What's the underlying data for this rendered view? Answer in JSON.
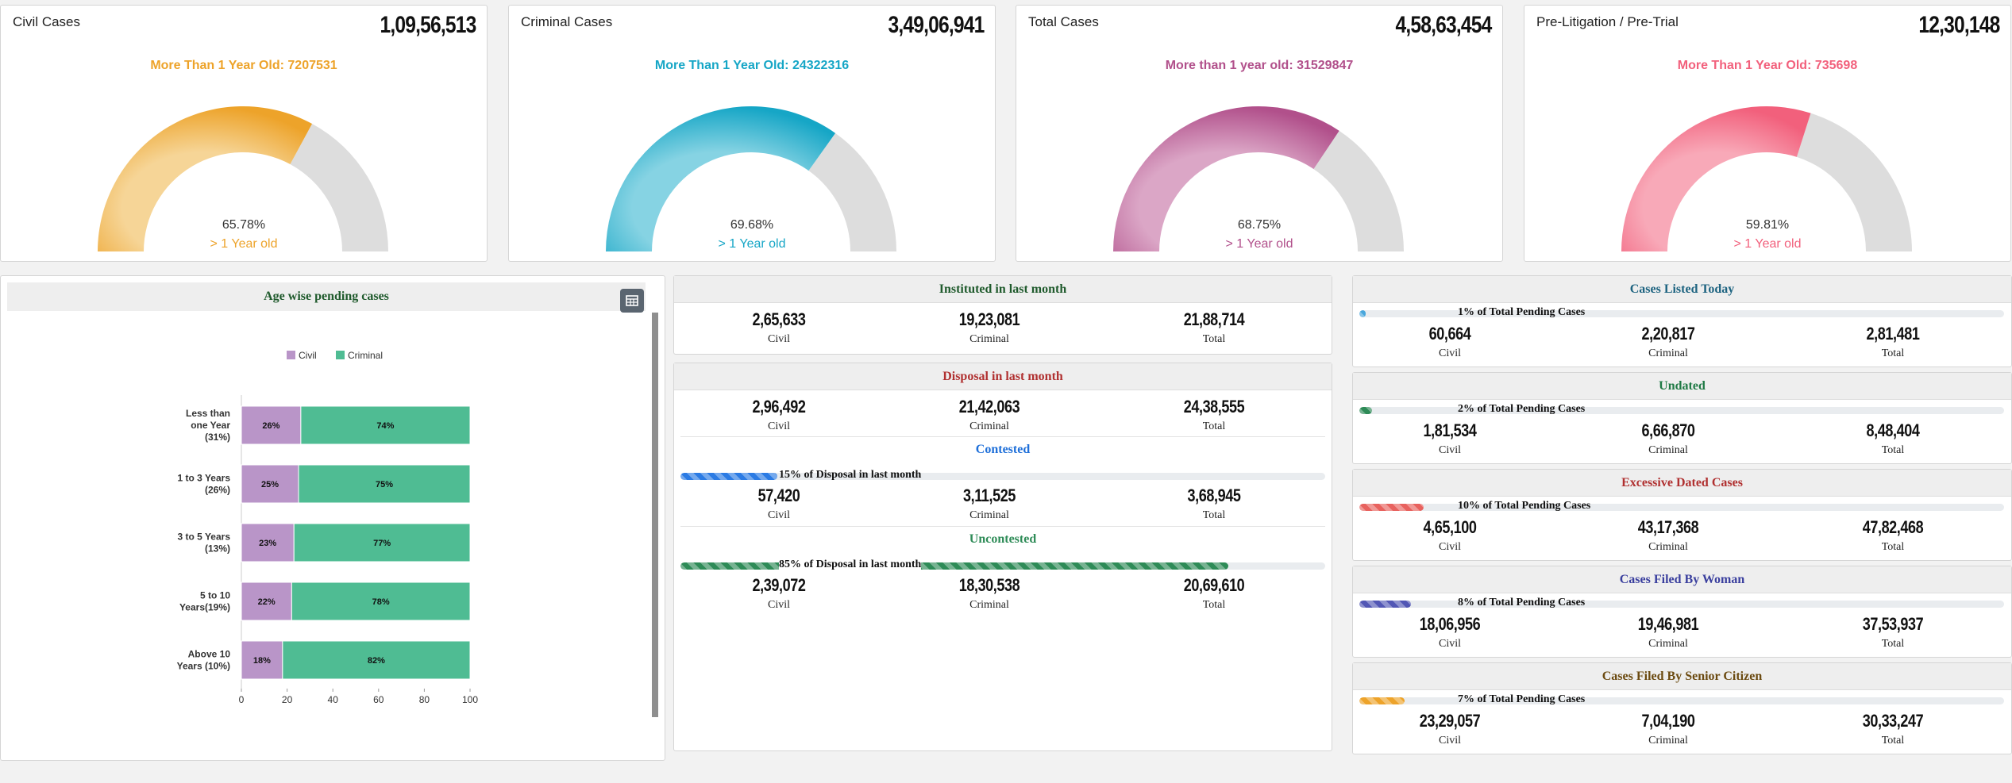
{
  "gauges": [
    {
      "title": "Civil Cases",
      "total": "1,09,56,513",
      "subtitle": "More Than 1 Year Old: 7207531",
      "percent_text": "65.78%",
      "percent": 65.78,
      "label": "> 1 Year old",
      "color": "#eda32a",
      "color_light": "#f6d597"
    },
    {
      "title": "Criminal Cases",
      "total": "3,49,06,941",
      "subtitle": "More Than 1 Year Old: 24322316",
      "percent_text": "69.68%",
      "percent": 69.68,
      "label": "> 1 Year old",
      "color": "#16a6c6",
      "color_light": "#86d3e3"
    },
    {
      "title": "Total Cases",
      "total": "4,58,63,454",
      "subtitle": "More than 1 year old: 31529847",
      "percent_text": "68.75%",
      "percent": 68.75,
      "label": "> 1 Year old",
      "color": "#b1508b",
      "color_light": "#dba6c6"
    },
    {
      "title": "Pre-Litigation / Pre-Trial",
      "total": "12,30,148",
      "subtitle": "More Than 1 Year Old: 735698",
      "percent_text": "59.81%",
      "percent": 59.81,
      "label": "> 1 Year old",
      "color": "#f2607c",
      "color_light": "#f8a9b8"
    }
  ],
  "colors": {
    "title_dark_green": "#1f5a2c",
    "disposal_red": "#b03030",
    "contested_blue": "#1e6fd9"
  },
  "chart_panel": {
    "title": "Age wise pending cases",
    "table_icon": "table-icon"
  },
  "chart_data": {
    "type": "bar",
    "orientation": "horizontal",
    "stacked": true,
    "categories": [
      "Less than one Year (31%)",
      "1 to 3 Years (26%)",
      "3 to 5 Years (13%)",
      "5 to 10 Years(19%)",
      "Above 10 Years (10%)"
    ],
    "category_lines": [
      [
        "Less than",
        "one Year",
        "(31%)"
      ],
      [
        "1 to 3 Years",
        "(26%)"
      ],
      [
        "3 to 5 Years",
        "(13%)"
      ],
      [
        "5 to 10",
        "Years(19%)"
      ],
      [
        "Above 10",
        "Years (10%)"
      ]
    ],
    "series": [
      {
        "name": "Civil",
        "values": [
          26,
          25,
          23,
          22,
          18
        ],
        "color": "#b995c8"
      },
      {
        "name": "Criminal",
        "values": [
          74,
          75,
          77,
          78,
          82
        ],
        "color": "#4fbc93"
      }
    ],
    "xlim": [
      0,
      100
    ],
    "xticks": [
      "0",
      "20",
      "40",
      "60",
      "80",
      "100"
    ],
    "legend": "top",
    "grid": false
  },
  "instituted": {
    "title": "Instituted in last month",
    "civil": "2,65,633",
    "criminal": "19,23,081",
    "total": "21,88,714",
    "civil_label": "Civil",
    "criminal_label": "Criminal",
    "total_label": "Total"
  },
  "disposal": {
    "title": "Disposal in last month",
    "civil": "2,96,492",
    "criminal": "21,42,063",
    "total": "24,38,555",
    "civil_label": "Civil",
    "criminal_label": "Criminal",
    "total_label": "Total",
    "contested": {
      "title": "Contested",
      "bar_text": "15% of Disposal in last month",
      "percent": 15,
      "civil": "57,420",
      "criminal": "3,11,525",
      "total": "3,68,945",
      "color": "#2b7be4"
    },
    "uncontested": {
      "title": "Uncontested",
      "bar_text": "85% of Disposal in last month",
      "percent": 85,
      "civil": "2,39,072",
      "criminal": "18,30,538",
      "total": "20,69,610",
      "color": "#2e8b57"
    }
  },
  "right_panels": [
    {
      "title": "Cases Listed Today",
      "title_color": "#1d6380",
      "bar_text": "1% of Total Pending Cases",
      "percent": 1,
      "bar_color": "#48a6dc",
      "civil": "60,664",
      "criminal": "2,20,817",
      "total": "2,81,481"
    },
    {
      "title": "Undated",
      "title_color": "#1f7a45",
      "bar_text": "2% of Total Pending Cases",
      "percent": 2,
      "bar_color": "#2e8b57",
      "civil": "1,81,534",
      "criminal": "6,66,870",
      "total": "8,48,404"
    },
    {
      "title": "Excessive Dated Cases",
      "title_color": "#b03030",
      "bar_text": "10% of Total Pending Cases",
      "percent": 10,
      "bar_color": "#e8625e",
      "civil": "4,65,100",
      "criminal": "43,17,368",
      "total": "47,82,468"
    },
    {
      "title": "Cases Filed By Woman",
      "title_color": "#3a3f9e",
      "bar_text": "8% of Total Pending Cases",
      "percent": 8,
      "bar_color": "#5257b5",
      "civil": "18,06,956",
      "criminal": "19,46,981",
      "total": "37,53,937"
    },
    {
      "title": "Cases Filed By Senior Citizen",
      "title_color": "#6b4a10",
      "bar_text": "7% of Total Pending Cases",
      "percent": 7,
      "bar_color": "#eda32a",
      "civil": "23,29,057",
      "criminal": "7,04,190",
      "total": "30,33,247"
    }
  ],
  "labels": {
    "civil": "Civil",
    "criminal": "Criminal",
    "total": "Total"
  }
}
